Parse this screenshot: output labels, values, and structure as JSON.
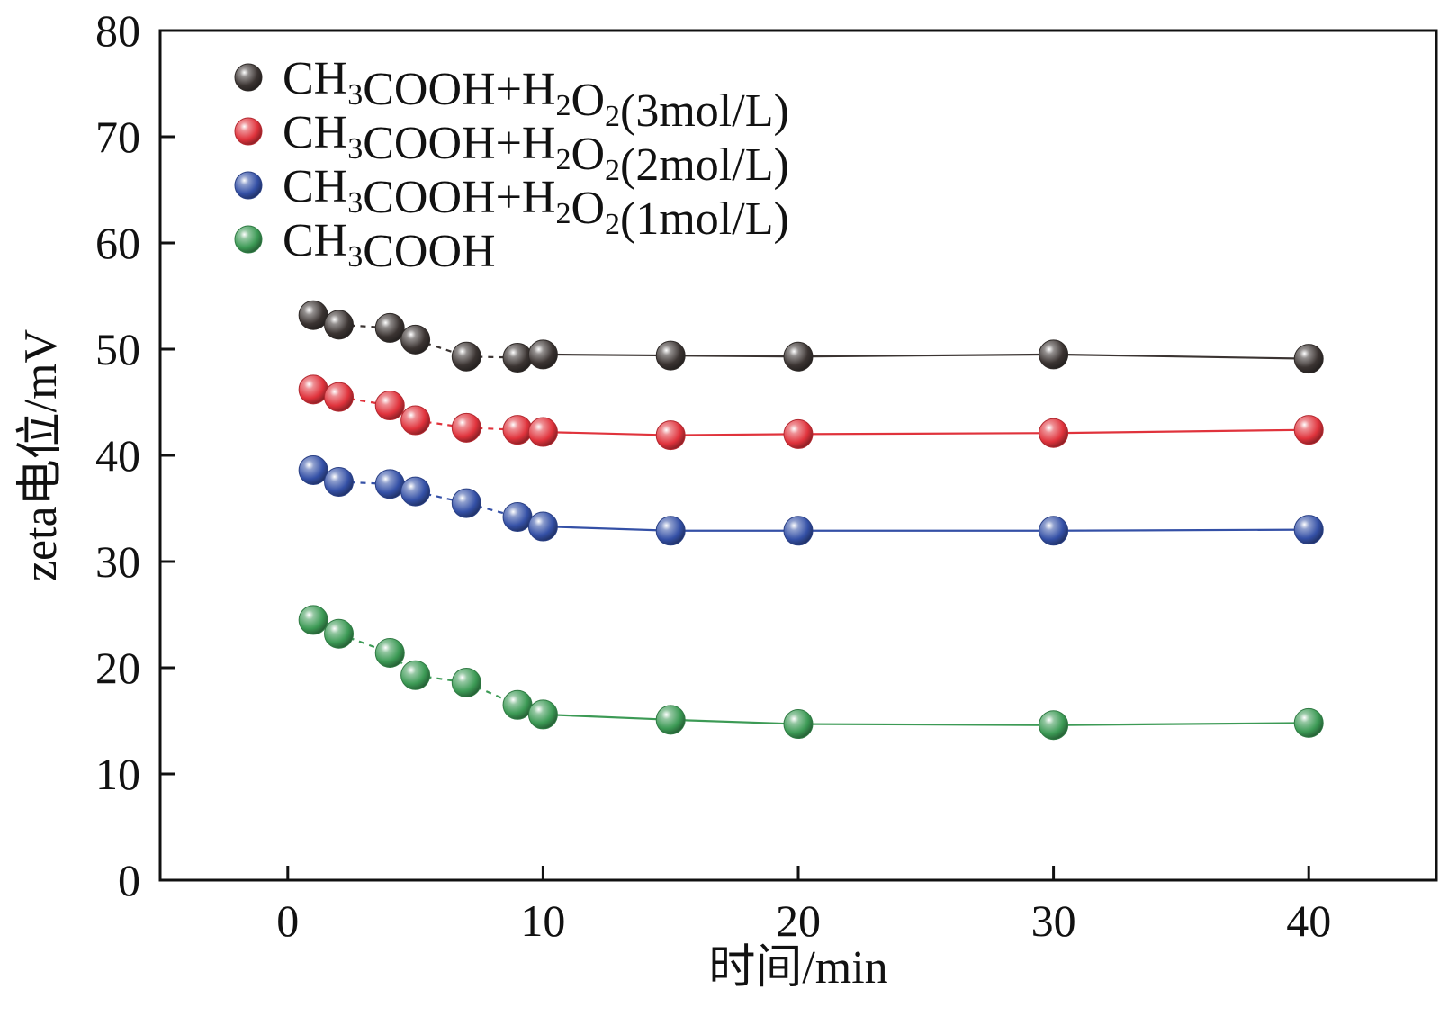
{
  "chart_data": {
    "type": "scatter",
    "title": "",
    "xlabel": "时间/min",
    "ylabel": "zeta电位/mV",
    "xlim": [
      -5,
      45
    ],
    "ylim": [
      0,
      80
    ],
    "xticks": [
      0,
      10,
      20,
      30,
      40
    ],
    "yticks": [
      0,
      10,
      20,
      30,
      40,
      50,
      60,
      70,
      80
    ],
    "grid": false,
    "legend_position": "top-left",
    "x": [
      1,
      2,
      4,
      5,
      7,
      9,
      10,
      15,
      20,
      30,
      40
    ],
    "dashed_until_x": 10,
    "series": [
      {
        "name": "CH3COOH+H2O2(3mol/L)",
        "legend_parts": [
          {
            "t": "CH",
            "sub": false
          },
          {
            "t": "3",
            "sub": true
          },
          {
            "t": "COOH+H",
            "sub": false
          },
          {
            "t": "2",
            "sub": true
          },
          {
            "t": "O",
            "sub": false
          },
          {
            "t": "2",
            "sub": true
          },
          {
            "t": "(3mol/L)",
            "sub": false
          }
        ],
        "color": "#3b3432",
        "y": [
          53.2,
          52.3,
          52.0,
          50.9,
          49.3,
          49.2,
          49.5,
          49.4,
          49.3,
          49.5,
          49.1
        ]
      },
      {
        "name": "CH3COOH+H2O2(2mol/L)",
        "legend_parts": [
          {
            "t": "CH",
            "sub": false
          },
          {
            "t": "3",
            "sub": true
          },
          {
            "t": "COOH+H",
            "sub": false
          },
          {
            "t": "2",
            "sub": true
          },
          {
            "t": "O",
            "sub": false
          },
          {
            "t": "2",
            "sub": true
          },
          {
            "t": "(2mol/L)",
            "sub": false
          }
        ],
        "color": "#e0333c",
        "y": [
          46.2,
          45.5,
          44.7,
          43.3,
          42.6,
          42.4,
          42.2,
          41.9,
          42.0,
          42.1,
          42.4
        ]
      },
      {
        "name": "CH3COOH+H2O2(1mol/L)",
        "legend_parts": [
          {
            "t": "CH",
            "sub": false
          },
          {
            "t": "3",
            "sub": true
          },
          {
            "t": "COOH+H",
            "sub": false
          },
          {
            "t": "2",
            "sub": true
          },
          {
            "t": "O",
            "sub": false
          },
          {
            "t": "2",
            "sub": true
          },
          {
            "t": "(1mol/L)",
            "sub": false
          }
        ],
        "color": "#3450a6",
        "y": [
          38.6,
          37.5,
          37.3,
          36.6,
          35.5,
          34.2,
          33.3,
          32.9,
          32.9,
          32.9,
          33.0
        ]
      },
      {
        "name": "CH3COOH",
        "legend_parts": [
          {
            "t": "CH",
            "sub": false
          },
          {
            "t": "3",
            "sub": true
          },
          {
            "t": "COOH",
            "sub": false
          }
        ],
        "color": "#3c9a55",
        "y": [
          24.5,
          23.2,
          21.4,
          19.3,
          18.6,
          16.5,
          15.6,
          15.1,
          14.7,
          14.6,
          14.8
        ]
      }
    ]
  }
}
